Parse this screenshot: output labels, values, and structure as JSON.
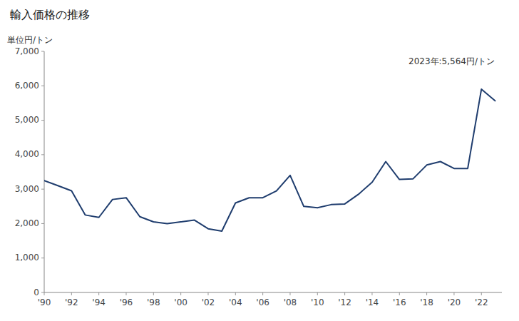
{
  "chart_data": {
    "type": "line",
    "title": "輸入価格の推移",
    "ylabel": "単位円/トン",
    "annotation": "2023年:5,564円/トン",
    "color": "#1f3d6e",
    "x": [
      1990,
      1991,
      1992,
      1993,
      1994,
      1995,
      1996,
      1997,
      1998,
      1999,
      2000,
      2001,
      2002,
      2003,
      2004,
      2005,
      2006,
      2007,
      2008,
      2009,
      2010,
      2011,
      2012,
      2013,
      2014,
      2015,
      2016,
      2017,
      2018,
      2019,
      2020,
      2021,
      2022,
      2023
    ],
    "values": [
      3250,
      3100,
      2950,
      2250,
      2180,
      2700,
      2750,
      2200,
      2050,
      2000,
      2050,
      2100,
      1850,
      1780,
      2600,
      2750,
      2750,
      2950,
      3400,
      2500,
      2460,
      2550,
      2570,
      2850,
      3200,
      3800,
      3280,
      3300,
      3700,
      3800,
      3600,
      3600,
      5900,
      5564
    ],
    "xlim": [
      1990,
      2023.5
    ],
    "xticks": [
      {
        "value": 1990,
        "label": "'90"
      },
      {
        "value": 1992,
        "label": "'92"
      },
      {
        "value": 1994,
        "label": "'94"
      },
      {
        "value": 1996,
        "label": "'96"
      },
      {
        "value": 1998,
        "label": "'98"
      },
      {
        "value": 2000,
        "label": "'00"
      },
      {
        "value": 2002,
        "label": "'02"
      },
      {
        "value": 2004,
        "label": "'04"
      },
      {
        "value": 2006,
        "label": "'06"
      },
      {
        "value": 2008,
        "label": "'08"
      },
      {
        "value": 2010,
        "label": "'10"
      },
      {
        "value": 2012,
        "label": "'12"
      },
      {
        "value": 2014,
        "label": "'14"
      },
      {
        "value": 2016,
        "label": "'16"
      },
      {
        "value": 2018,
        "label": "'18"
      },
      {
        "value": 2020,
        "label": "'20"
      },
      {
        "value": 2022,
        "label": "'22"
      }
    ],
    "ylim": [
      0,
      7000
    ],
    "yticks": [
      0,
      {
        "value": 1000,
        "label": "1,000"
      },
      {
        "value": 2000,
        "label": "2,000"
      },
      {
        "value": 3000,
        "label": "3,000"
      },
      {
        "value": 4000,
        "label": "4,000"
      },
      {
        "value": 5000,
        "label": "5,000"
      },
      {
        "value": 6000,
        "label": "6,000"
      },
      {
        "value": 7000,
        "label": "7,000"
      }
    ],
    "grid": false
  }
}
